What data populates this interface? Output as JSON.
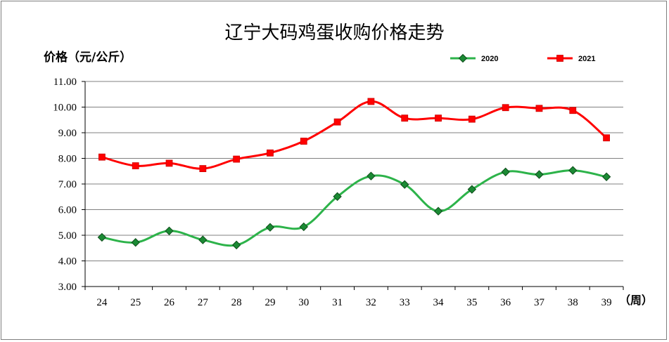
{
  "chart_data": {
    "type": "line",
    "title": "辽宁大码鸡蛋收购价格走势",
    "ylabel": "价格（元/公斤）",
    "xlabel_unit": "（周）",
    "categories": [
      "24",
      "25",
      "26",
      "27",
      "28",
      "29",
      "30",
      "31",
      "32",
      "33",
      "34",
      "35",
      "36",
      "37",
      "38",
      "39"
    ],
    "y_ticks": [
      "3.00",
      "4.00",
      "5.00",
      "6.00",
      "7.00",
      "8.00",
      "9.00",
      "10.00",
      "11.00"
    ],
    "ylim": [
      3,
      11
    ],
    "grid": "horizontal",
    "legend_position": "top-right",
    "series": [
      {
        "name": "2020",
        "color": "#2db34a",
        "marker": "diamond",
        "marker_color": "#1b8a34",
        "values": [
          4.92,
          4.72,
          5.17,
          4.82,
          4.62,
          5.31,
          5.33,
          6.51,
          7.31,
          6.98,
          5.94,
          6.79,
          7.47,
          7.37,
          7.53,
          7.28
        ]
      },
      {
        "name": "2021",
        "color": "#ff0000",
        "marker": "square",
        "marker_color": "#ff0000",
        "values": [
          8.05,
          7.71,
          7.81,
          7.6,
          7.97,
          8.21,
          8.67,
          9.42,
          10.22,
          9.57,
          9.57,
          9.53,
          9.98,
          9.95,
          9.87,
          8.8
        ]
      }
    ]
  }
}
